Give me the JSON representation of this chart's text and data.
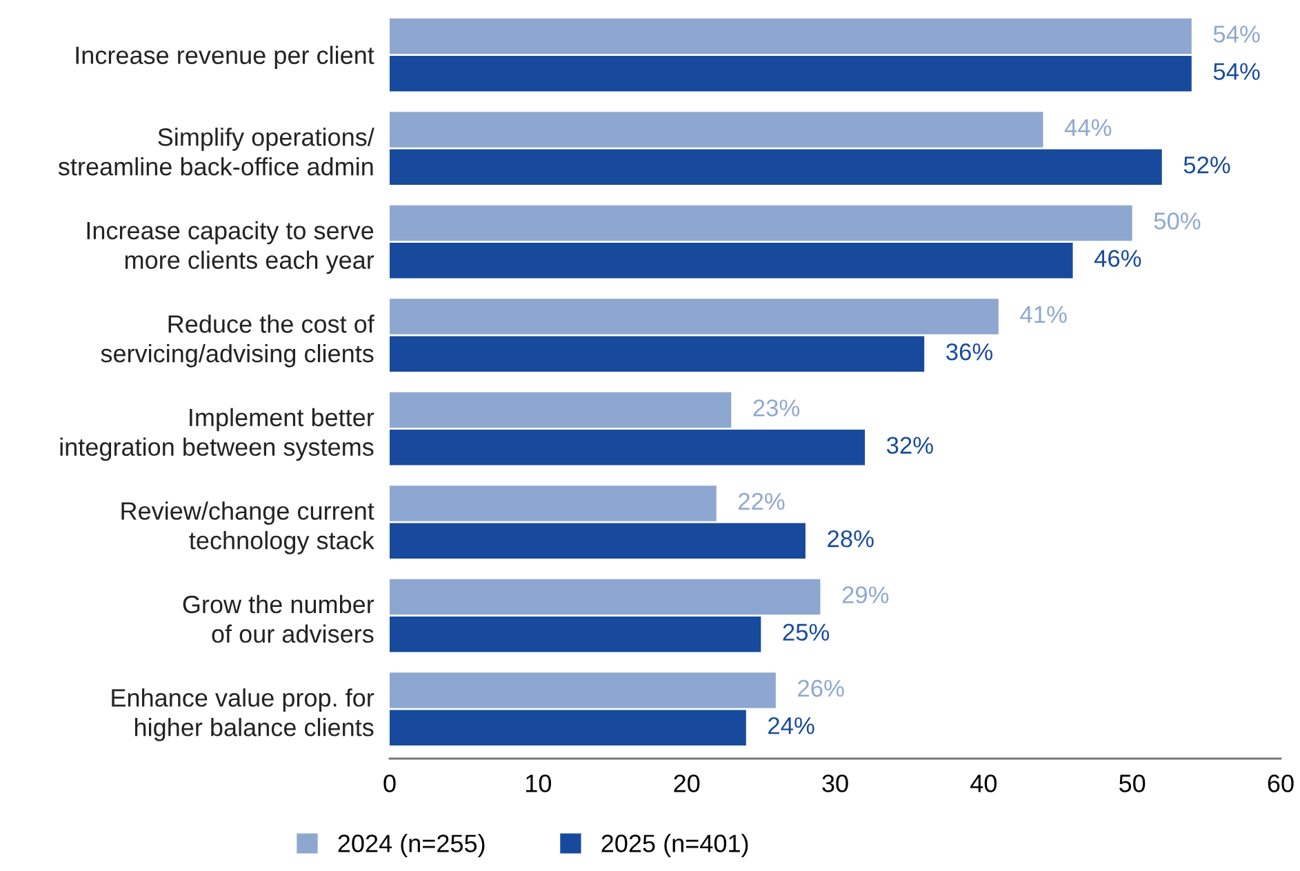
{
  "chart_data": {
    "type": "bar",
    "orientation": "horizontal",
    "categories": [
      "Increase revenue per client",
      "Simplify operations/\nstreamline back-office admin",
      "Increase capacity to serve\nmore clients each year",
      "Reduce the cost of\nservicing/advising clients",
      "Implement better\nintegration between systems",
      "Review/change current\ntechnology stack",
      "Grow the number\nof our advisers",
      "Enhance value prop. for\nhigher balance clients"
    ],
    "series": [
      {
        "name": "2024 (n=255)",
        "color": "#8ea7d0",
        "values": [
          54,
          44,
          50,
          41,
          23,
          22,
          29,
          26
        ],
        "value_labels": [
          "54%",
          "44%",
          "50%",
          "41%",
          "23%",
          "22%",
          "29%",
          "26%"
        ]
      },
      {
        "name": "2025 (n=401)",
        "color": "#174a9c",
        "values": [
          54,
          52,
          46,
          36,
          32,
          28,
          25,
          24
        ],
        "value_labels": [
          "54%",
          "52%",
          "46%",
          "36%",
          "32%",
          "28%",
          "25%",
          "24%"
        ]
      }
    ],
    "xlim": [
      0,
      60
    ],
    "xticks": [
      0,
      10,
      20,
      30,
      40,
      50,
      60
    ],
    "grid": false,
    "legend": "bottom"
  }
}
